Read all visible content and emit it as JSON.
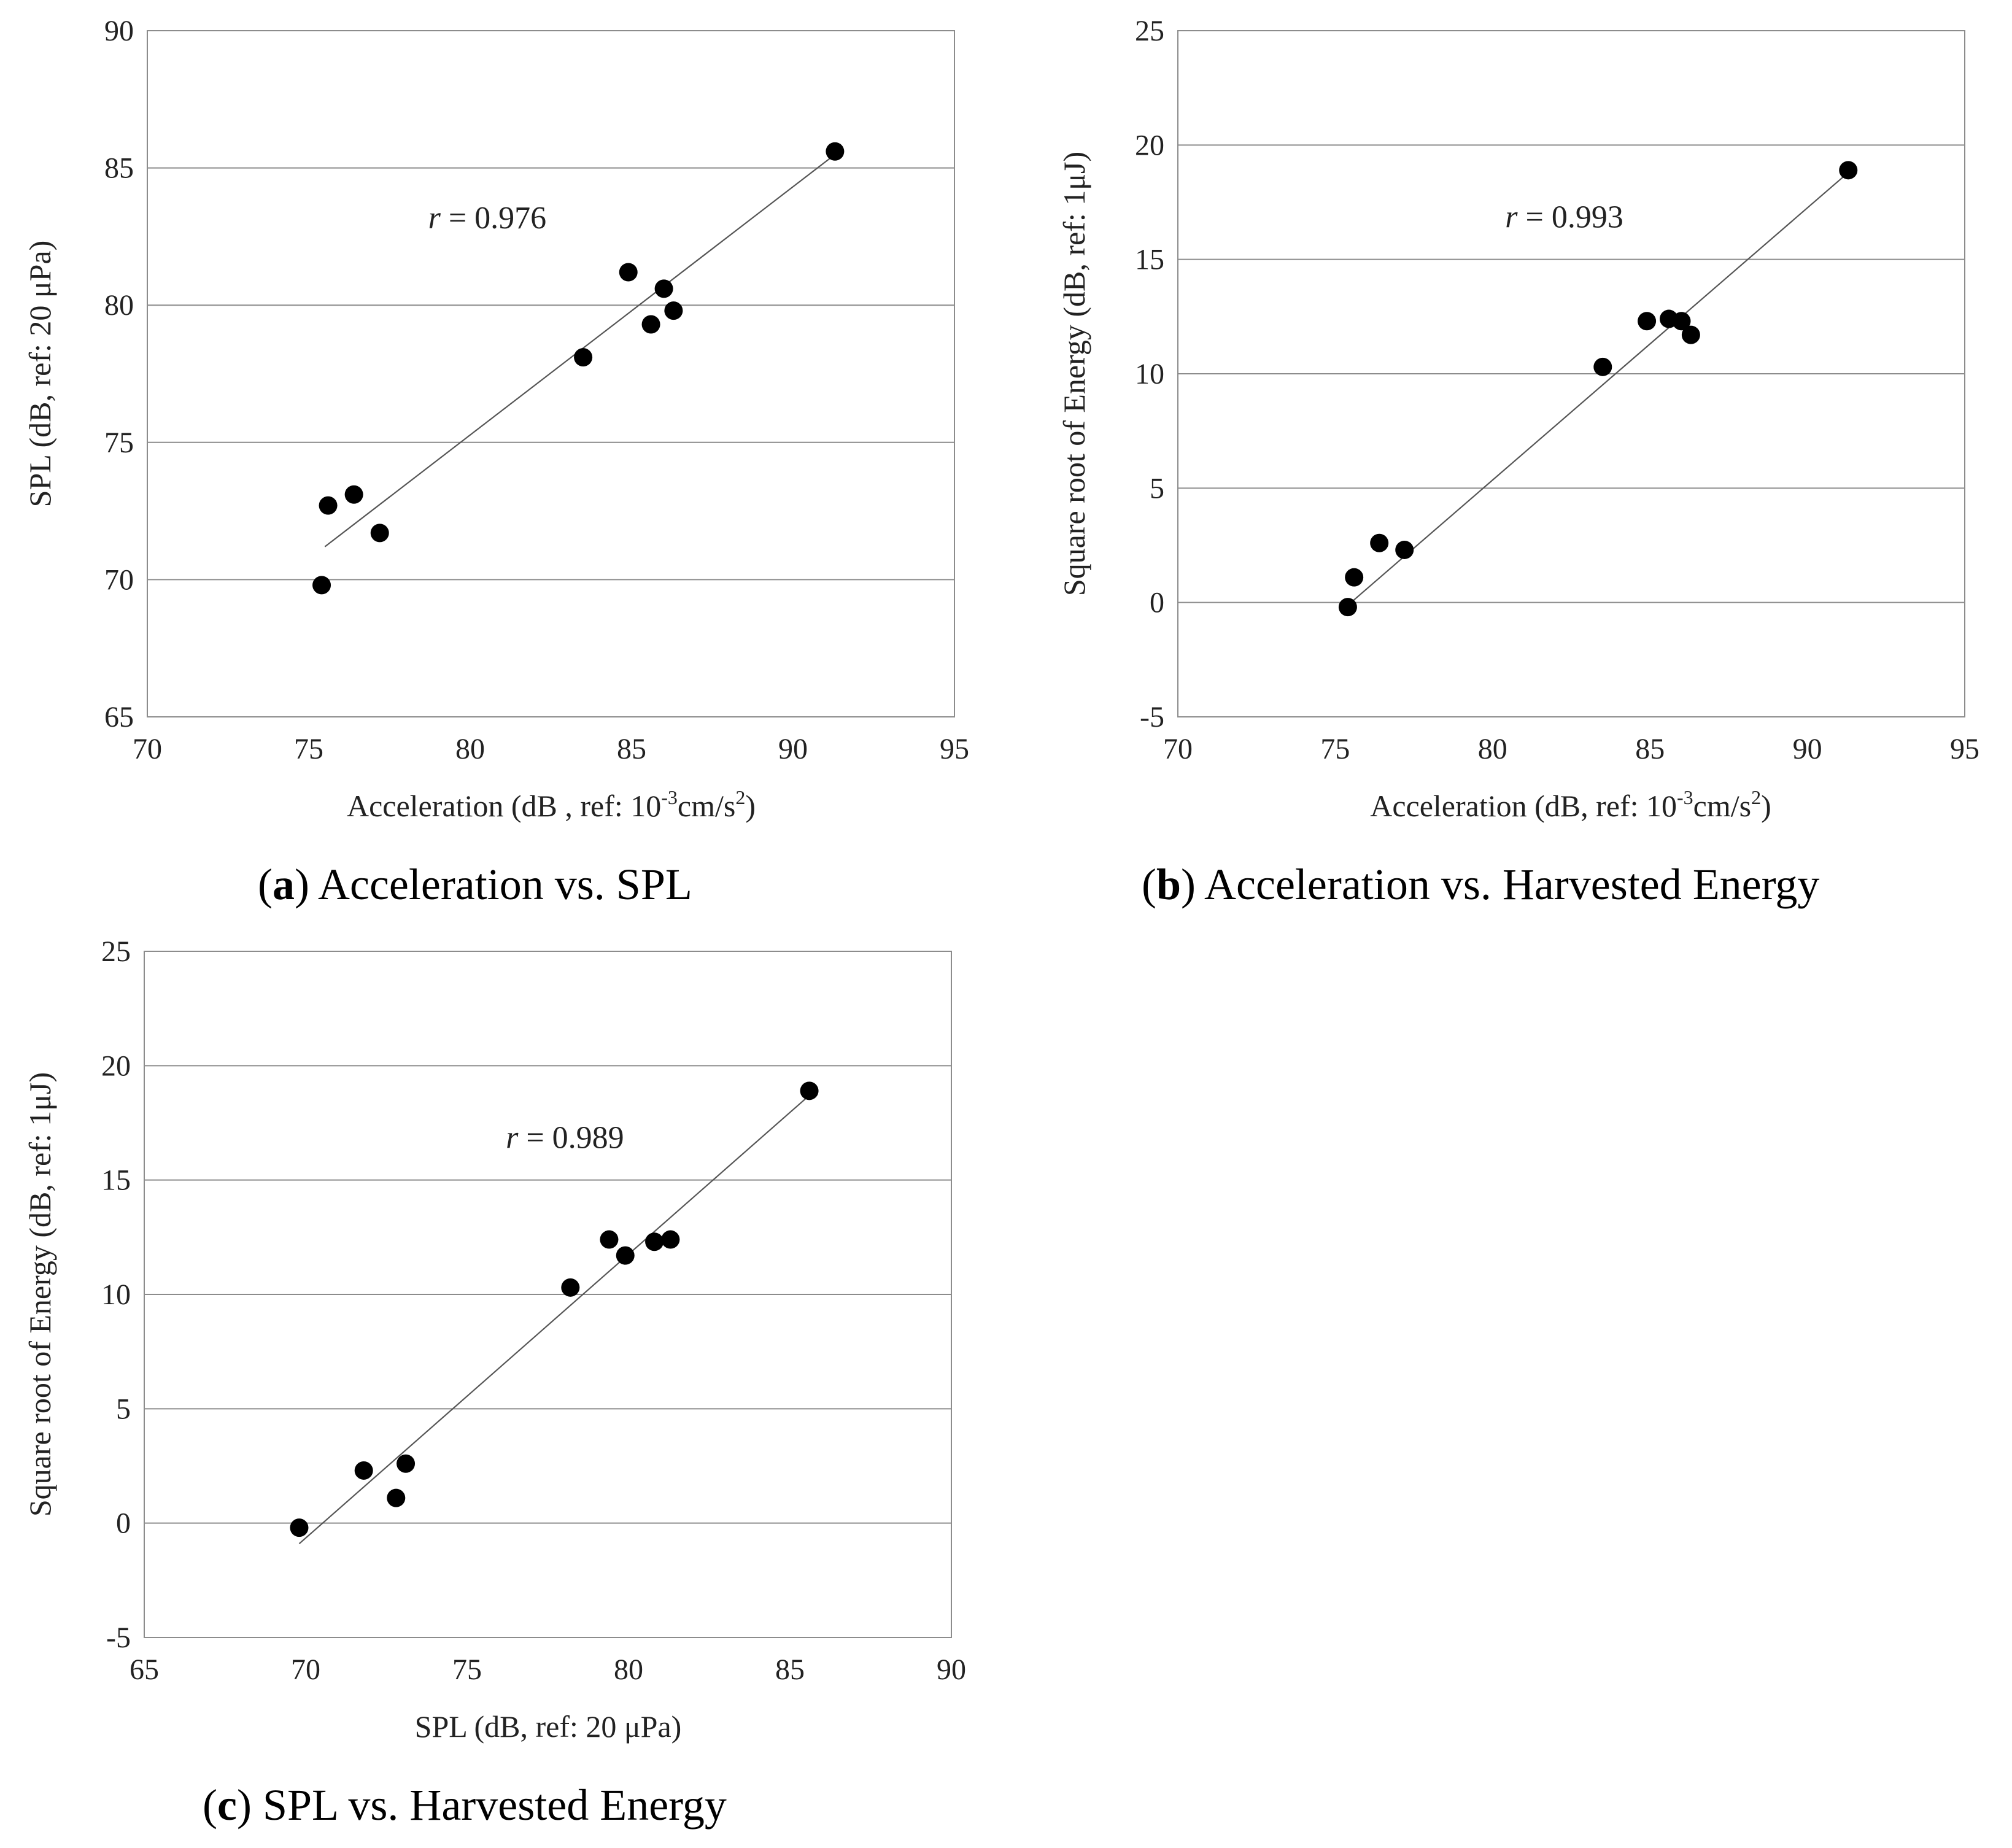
{
  "chart_data": [
    {
      "id": "a",
      "type": "scatter",
      "caption_letter": "a",
      "caption_text": "Acceleration vs. SPL",
      "xlabel": "Acceleration  (dB , ref: 10-3cm/s2)",
      "xlabel_parts": [
        "Acceleration  (dB , ref: 10",
        "-3",
        "cm/s",
        "2",
        ")"
      ],
      "ylabel": "SPL (dB, ref: 20 μPa)",
      "xlim": [
        70,
        95
      ],
      "ylim": [
        65,
        90
      ],
      "xticks": [
        70,
        75,
        80,
        85,
        90,
        95
      ],
      "yticks": [
        65,
        70,
        75,
        80,
        85,
        90
      ],
      "grid": "horizontal",
      "annotation": {
        "symbol": "r",
        "text": " = 0.976",
        "x": 78.7,
        "y": 82.8
      },
      "trendline": {
        "x1": 75.5,
        "y1": 71.2,
        "x2": 91.2,
        "y2": 85.4
      },
      "points": [
        {
          "x": 75.4,
          "y": 69.8
        },
        {
          "x": 75.6,
          "y": 72.7
        },
        {
          "x": 76.4,
          "y": 73.1
        },
        {
          "x": 77.2,
          "y": 71.7
        },
        {
          "x": 83.5,
          "y": 78.1
        },
        {
          "x": 84.9,
          "y": 81.2
        },
        {
          "x": 85.6,
          "y": 79.3
        },
        {
          "x": 86.0,
          "y": 80.6
        },
        {
          "x": 86.3,
          "y": 79.8
        },
        {
          "x": 91.3,
          "y": 85.6
        }
      ]
    },
    {
      "id": "b",
      "type": "scatter",
      "caption_letter": "b",
      "caption_text": "Acceleration vs. Harvested Energy",
      "xlabel": "Acceleration  (dB, ref: 10-3cm/s2)",
      "xlabel_parts": [
        "Acceleration  (dB, ref: 10",
        "-3",
        "cm/s",
        "2",
        ")"
      ],
      "ylabel": "Square root of Energy  (dB, ref: 1μJ)",
      "xlim": [
        70,
        95
      ],
      "ylim": [
        -5,
        25
      ],
      "xticks": [
        70,
        75,
        80,
        85,
        90,
        95
      ],
      "yticks": [
        -5,
        0,
        5,
        10,
        15,
        20,
        25
      ],
      "grid": "horizontal",
      "annotation": {
        "symbol": "r",
        "text": " = 0.993",
        "x": 80.4,
        "y": 16.4
      },
      "trendline": {
        "x1": 75.5,
        "y1": 0.0,
        "x2": 91.3,
        "y2": 18.8
      },
      "points": [
        {
          "x": 75.4,
          "y": -0.2
        },
        {
          "x": 75.6,
          "y": 1.1
        },
        {
          "x": 76.4,
          "y": 2.6
        },
        {
          "x": 77.2,
          "y": 2.3
        },
        {
          "x": 83.5,
          "y": 10.3
        },
        {
          "x": 84.9,
          "y": 12.3
        },
        {
          "x": 85.6,
          "y": 12.4
        },
        {
          "x": 86.0,
          "y": 12.3
        },
        {
          "x": 86.3,
          "y": 11.7
        },
        {
          "x": 91.3,
          "y": 18.9
        }
      ]
    },
    {
      "id": "c",
      "type": "scatter",
      "caption_letter": "c",
      "caption_text": "SPL vs. Harvested Energy",
      "xlabel": "SPL (dB, ref: 20 μPa)",
      "xlabel_parts": [
        "SPL (dB, ref: 20 μPa)"
      ],
      "ylabel": "Square root of Energy  (dB, ref: 1μJ)",
      "xlim": [
        65,
        90
      ],
      "ylim": [
        -5,
        25
      ],
      "xticks": [
        65,
        70,
        75,
        80,
        85,
        90
      ],
      "yticks": [
        -5,
        0,
        5,
        10,
        15,
        20,
        25
      ],
      "grid": "horizontal",
      "annotation": {
        "symbol": "r",
        "text": " = 0.989",
        "x": 76.2,
        "y": 16.4
      },
      "trendline": {
        "x1": 69.8,
        "y1": -0.9,
        "x2": 85.6,
        "y2": 18.7
      },
      "points": [
        {
          "x": 69.8,
          "y": -0.2
        },
        {
          "x": 71.8,
          "y": 2.3
        },
        {
          "x": 72.8,
          "y": 1.1
        },
        {
          "x": 73.1,
          "y": 2.6
        },
        {
          "x": 78.2,
          "y": 10.3
        },
        {
          "x": 79.4,
          "y": 12.4
        },
        {
          "x": 79.9,
          "y": 11.7
        },
        {
          "x": 80.8,
          "y": 12.3
        },
        {
          "x": 81.3,
          "y": 12.4
        },
        {
          "x": 85.6,
          "y": 18.9
        }
      ]
    }
  ]
}
